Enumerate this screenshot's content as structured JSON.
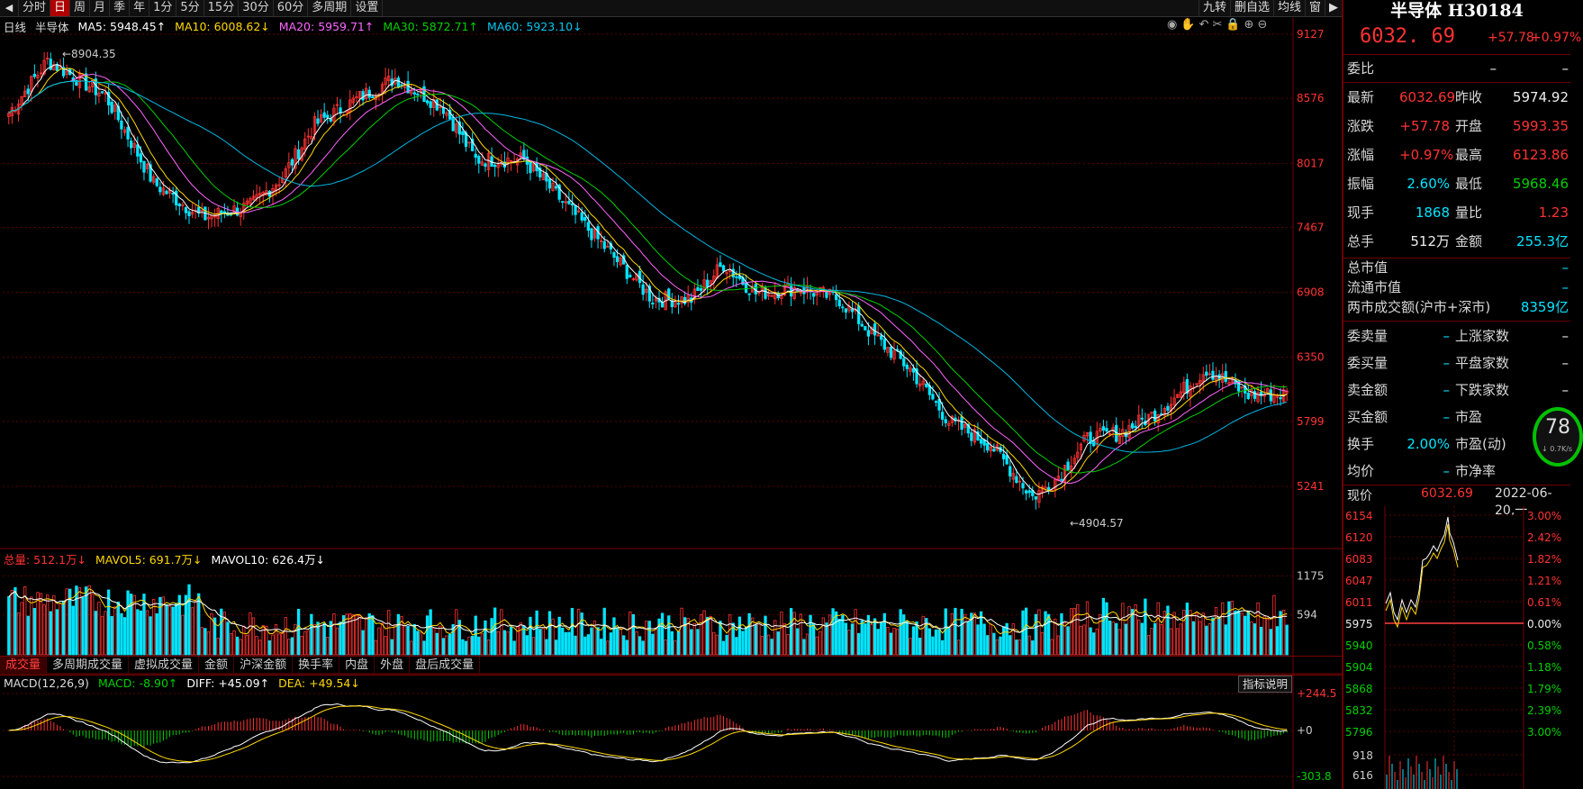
{
  "toolbar": {
    "periods": [
      "分时",
      "日",
      "周",
      "月",
      "季",
      "年",
      "1分",
      "5分",
      "15分",
      "30分",
      "60分",
      "多周期",
      "设置"
    ],
    "active_period": "日",
    "right_buttons": [
      "九转",
      "删自选",
      "均线",
      "窗"
    ]
  },
  "main_legend": {
    "period_label": "日线",
    "name": "半导体",
    "ma5": "MA5: 5948.45↑",
    "ma10": "MA10: 6008.62↓",
    "ma20": "MA20: 5959.71↑",
    "ma30": "MA30: 5872.71↑",
    "ma60": "MA60: 5923.10↓"
  },
  "price_axis": [
    "9127",
    "8576",
    "8017",
    "7467",
    "6908",
    "6350",
    "5799",
    "5241"
  ],
  "price_annotations": {
    "high": "8904.35",
    "low": "4904.57"
  },
  "volume_legend": {
    "total": "总量: 512.1万↓",
    "mavol5": "MAVOL5: 691.7万↓",
    "mavol10": "MAVOL10: 626.4万↓"
  },
  "volume_axis": [
    "1175",
    "594"
  ],
  "tabs": [
    "成交量",
    "多周期成交量",
    "虚拟成交量",
    "金额",
    "沪深金额",
    "换手率",
    "内盘",
    "外盘",
    "盘后成交量"
  ],
  "active_tab": "成交量",
  "macd_legend": {
    "name": "MACD(12,26,9)",
    "macd": "MACD: -8.90↑",
    "diff": "DIFF: +45.09↑",
    "dea": "DEA: +49.54↓"
  },
  "macd_axis": [
    "+244.5",
    "+0",
    "-303.8"
  ],
  "indicator_button": "指标说明",
  "panel": {
    "title": "半导体 H30184",
    "price": "6032. 69",
    "change": "+57.78",
    "change_pct": "+0.97%",
    "weibi_label": "委比",
    "weibi_v1": "–",
    "weibi_v2": "–",
    "quote_rows": [
      {
        "l1": "最新",
        "v1": "6032.69",
        "c1": "red",
        "l2": "昨收",
        "v2": "5974.92",
        "c2": "white"
      },
      {
        "l1": "涨跌",
        "v1": "+57.78",
        "c1": "red",
        "l2": "开盘",
        "v2": "5993.35",
        "c2": "red"
      },
      {
        "l1": "涨幅",
        "v1": "+0.97%",
        "c1": "red",
        "l2": "最高",
        "v2": "6123.86",
        "c2": "red"
      },
      {
        "l1": "振幅",
        "v1": "2.60%",
        "c1": "cyan",
        "l2": "最低",
        "v2": "5968.46",
        "c2": "green"
      },
      {
        "l1": "现手",
        "v1": "1868",
        "c1": "cyan",
        "l2": "量比",
        "v2": "1.23",
        "c2": "red"
      },
      {
        "l1": "总手",
        "v1": "512万",
        "c1": "white",
        "l2": "金额",
        "v2": "255.3亿",
        "c2": "cyan"
      }
    ],
    "market_rows": [
      {
        "l": "总市值",
        "v": "–"
      },
      {
        "l": "流通市值",
        "v": "–"
      },
      {
        "l": "两市成交额(沪市+深市)",
        "v": "8359亿"
      }
    ],
    "breadth_rows": [
      {
        "l1": "委卖量",
        "v1": "–",
        "l2": "上涨家数",
        "v2": "–"
      },
      {
        "l1": "委买量",
        "v1": "–",
        "l2": "平盘家数",
        "v2": "–"
      },
      {
        "l1": "卖金额",
        "v1": "–",
        "l2": "下跌家数",
        "v2": "–"
      },
      {
        "l1": "买金额",
        "v1": "–",
        "l2": "市盈",
        "v2": ""
      },
      {
        "l1": "换手",
        "v1": "2.00%",
        "l2": "市盈(动)",
        "v2": ""
      },
      {
        "l1": "均价",
        "v1": "–",
        "l2": "市净率",
        "v2": ""
      }
    ],
    "gauge_value": "78",
    "gauge_sub": "↓ 0.7K/s",
    "mini_header": {
      "label": "现价",
      "price": "6032.69",
      "date": "2022-06-20,一"
    },
    "mini_left_axis": [
      "6154",
      "6120",
      "6083",
      "6047",
      "6011",
      "5975",
      "5940",
      "5904",
      "5868",
      "5832",
      "5796"
    ],
    "mini_right_axis": [
      "3.00%",
      "2.42%",
      "1.82%",
      "1.21%",
      "0.61%",
      "0.00%",
      "0.58%",
      "1.18%",
      "1.79%",
      "2.39%",
      "3.00%"
    ],
    "mini_vol_axis": [
      "918",
      "616"
    ]
  },
  "colors": {
    "up": "#ff3232",
    "down": "#00e5ff",
    "ma5": "#ffffff",
    "ma10": "#ffd800",
    "ma20": "#ff66ff",
    "ma30": "#00d000",
    "ma60": "#00b7e6"
  }
}
